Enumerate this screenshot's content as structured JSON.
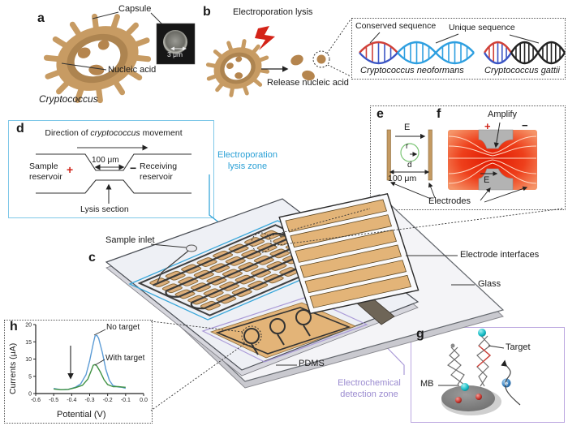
{
  "colors": {
    "accent_cyan": "#2AA0D6",
    "accent_purple": "#9B8BD0",
    "cell_tan": "#C79B63",
    "pad_tan": "#E3B478",
    "alert_red": "#D42318",
    "dna_red": "#D04038",
    "dna_blue": "#3B55C4",
    "dna_cyan": "#2E9FE0",
    "dna_black": "#222222"
  },
  "panel_a": {
    "letter": "a",
    "capsule": "Capsule",
    "nucleic_acid": "Nucleic acid",
    "species": "Cryptococcus",
    "scale_bar": "3 μm"
  },
  "panel_b": {
    "letter": "b",
    "lysis": "Electroporation lysis",
    "release": "Release nucleic acid",
    "conserved": "Conserved sequence",
    "unique": "Unique sequence",
    "species1": "Cryptococcus neoformans",
    "species2": "Cryptococcus gattii"
  },
  "panel_c": {
    "letter": "c",
    "sample_inlet": "Sample inlet",
    "electrode_interfaces": "Electrode interfaces",
    "glass": "Glass",
    "pdms": "PDMS",
    "lysis_zone_line1": "Electroporation",
    "lysis_zone_line2": "lysis zone",
    "detection_zone_line1": "Electrochemical",
    "detection_zone_line2": "detection zone"
  },
  "panel_d": {
    "letter": "d",
    "direction_prefix": "Direction of ",
    "direction_italic": "cryptococcus",
    "direction_suffix": " movement",
    "constriction_width": "100 μm",
    "sample_line1": "Sample",
    "sample_line2": "reservoir",
    "plus": "+",
    "minus": "−",
    "receiving_line1": "Receiving",
    "receiving_line2": "reservoir",
    "lysis_section": "Lysis section"
  },
  "panel_e": {
    "letter": "e",
    "field": "E",
    "radius": "r",
    "distance": "d",
    "gap_width": "100 μm"
  },
  "panel_f": {
    "letter": "f",
    "amplify": "Amplify",
    "plus": "+",
    "minus": "−",
    "field": "E",
    "electrodes": "Electrodes"
  },
  "panel_g": {
    "letter": "g",
    "mb": "MB",
    "target": "Target",
    "electron": "e"
  },
  "panel_h": {
    "letter": "h"
  },
  "chart_data": {
    "type": "line",
    "title": "",
    "xlabel": "Potential (V)",
    "ylabel": "Currents (μA)",
    "xlim": [
      -0.6,
      0.0
    ],
    "ylim": [
      0,
      20
    ],
    "xticks": [
      -0.6,
      -0.5,
      -0.4,
      -0.3,
      -0.2,
      -0.1,
      0.0
    ],
    "yticks": [
      0,
      5,
      10,
      15,
      20
    ],
    "grid": false,
    "annotation_arrow_at_x": -0.4,
    "series": [
      {
        "name": "No target",
        "color": "#5B9BD5",
        "points": [
          [
            -0.5,
            1.5
          ],
          [
            -0.46,
            1.1
          ],
          [
            -0.42,
            1.2
          ],
          [
            -0.38,
            1.8
          ],
          [
            -0.35,
            2.8
          ],
          [
            -0.32,
            5.5
          ],
          [
            -0.3,
            9.5
          ],
          [
            -0.28,
            14.5
          ],
          [
            -0.27,
            16.7
          ],
          [
            -0.26,
            16.9
          ],
          [
            -0.25,
            16.0
          ],
          [
            -0.23,
            12.0
          ],
          [
            -0.21,
            7.0
          ],
          [
            -0.19,
            3.8
          ],
          [
            -0.17,
            2.3
          ],
          [
            -0.14,
            1.9
          ],
          [
            -0.12,
            1.8
          ],
          [
            -0.1,
            1.5
          ]
        ]
      },
      {
        "name": "With target",
        "color": "#3F9142",
        "points": [
          [
            -0.5,
            1.3
          ],
          [
            -0.46,
            1.1
          ],
          [
            -0.42,
            1.2
          ],
          [
            -0.38,
            1.7
          ],
          [
            -0.34,
            2.4
          ],
          [
            -0.31,
            4.2
          ],
          [
            -0.29,
            6.8
          ],
          [
            -0.28,
            8.2
          ],
          [
            -0.27,
            8.4
          ],
          [
            -0.26,
            8.0
          ],
          [
            -0.24,
            6.2
          ],
          [
            -0.22,
            4.0
          ],
          [
            -0.2,
            2.6
          ],
          [
            -0.17,
            2.0
          ],
          [
            -0.14,
            2.0
          ],
          [
            -0.12,
            1.9
          ],
          [
            -0.1,
            1.8
          ]
        ]
      }
    ]
  }
}
